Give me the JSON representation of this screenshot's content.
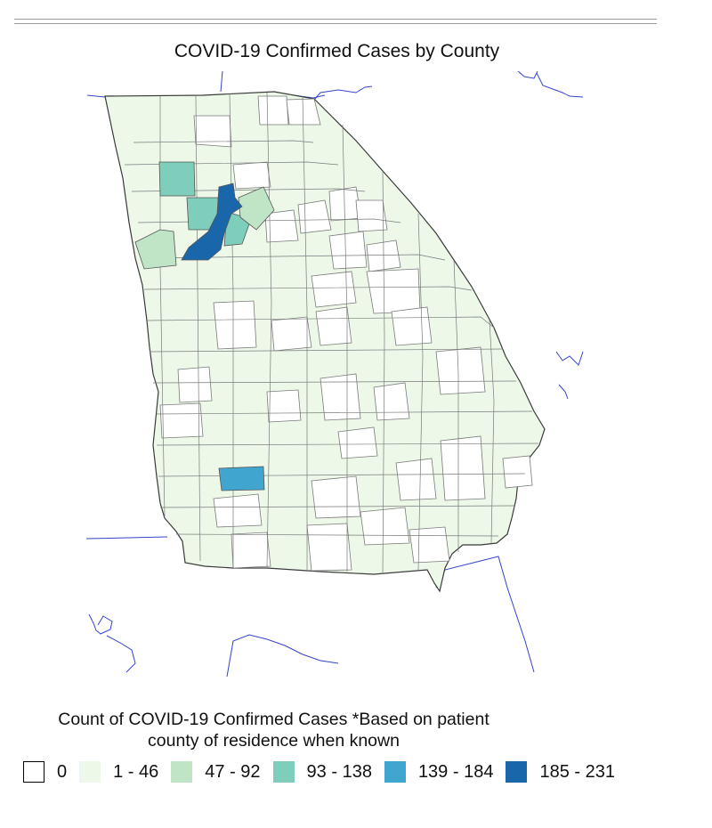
{
  "title": "COVID-19 Confirmed Cases by County",
  "legend": {
    "title_line1": "Count of COVID-19 Confirmed Cases *Based on patient",
    "title_line2": "county of residence when known",
    "classes": [
      {
        "label": "0",
        "color": "#ffffff"
      },
      {
        "label": "1 - 46",
        "color": "#edf8e9"
      },
      {
        "label": "47 - 92",
        "color": "#bfe5c6"
      },
      {
        "label": "93 - 138",
        "color": "#7fcdbb"
      },
      {
        "label": "139 - 184",
        "color": "#41a6cf"
      },
      {
        "label": "185 - 231",
        "color": "#1a66aa"
      }
    ]
  },
  "colors": {
    "state_border": "#3a3a3a",
    "county_border": "#7a7a7a",
    "neighbor_lines": "#3344cc"
  }
}
